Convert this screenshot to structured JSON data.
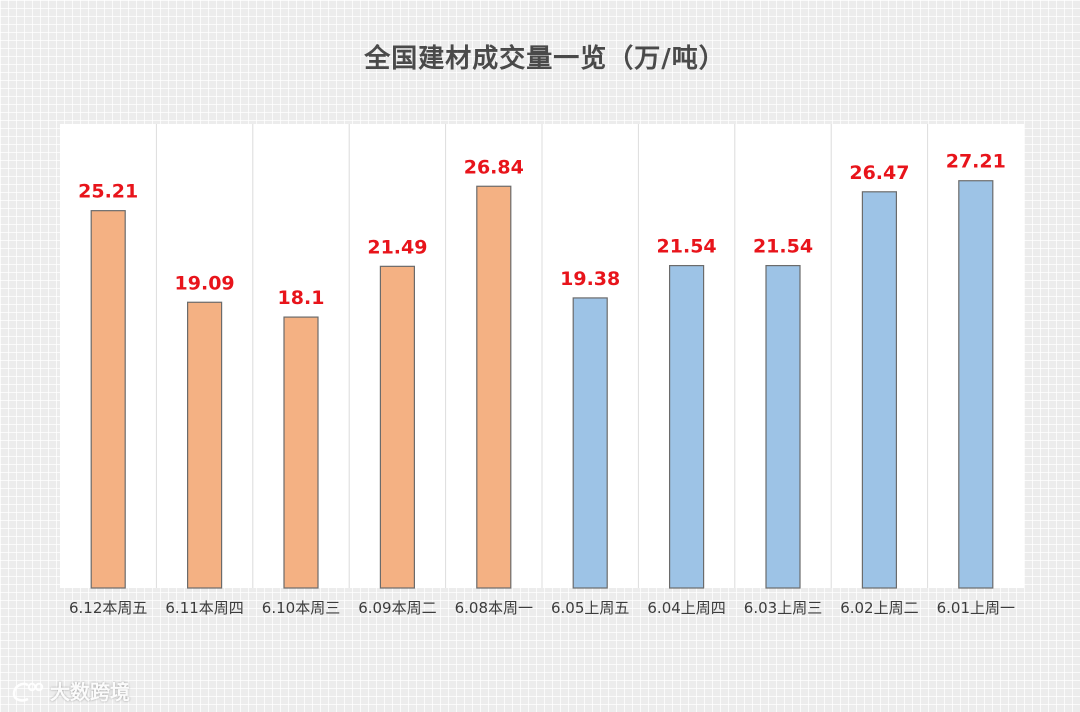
{
  "chart_data": {
    "type": "bar",
    "title": "全国建材成交量一览（万/吨）",
    "categories": [
      "6.12本周五",
      "6.11本周四",
      "6.10本周三",
      "6.09本周二",
      "6.08本周一",
      "6.05上周五",
      "6.04上周四",
      "6.03上周三",
      "6.02上周二",
      "6.01上周一"
    ],
    "values": [
      25.21,
      19.09,
      18.1,
      21.49,
      26.84,
      19.38,
      21.54,
      21.54,
      26.47,
      27.21
    ],
    "value_labels": [
      "25.21",
      "19.09",
      "18.1",
      "21.49",
      "26.84",
      "19.38",
      "21.54",
      "21.54",
      "26.47",
      "27.21"
    ],
    "bar_colors": [
      "#f4b183",
      "#f4b183",
      "#f4b183",
      "#f4b183",
      "#f4b183",
      "#9dc3e6",
      "#9dc3e6",
      "#9dc3e6",
      "#9dc3e6",
      "#9dc3e6"
    ],
    "ylim": [
      0,
      31
    ],
    "grid": false,
    "legend": "none"
  },
  "watermark": {
    "text": "大数跨境",
    "icon": "weibo-style-logo-icon"
  },
  "colors": {
    "this_week_bar": "#f4b183",
    "last_week_bar": "#9dc3e6",
    "value_label": "#e8141b",
    "title": "#4a4a4a"
  }
}
